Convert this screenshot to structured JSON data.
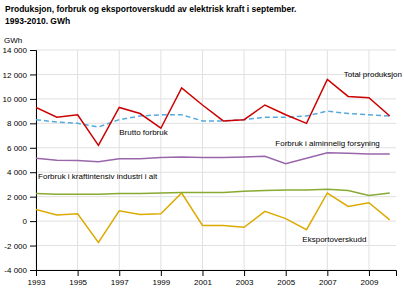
{
  "chart_data": {
    "type": "line",
    "title": "Produksjon, forbruk og eksportoverskudd av elektrisk kraft i september.",
    "subtitle": "1993-2010. GWh",
    "ylabel": "GWh",
    "x": [
      1993,
      1994,
      1995,
      1996,
      1997,
      1998,
      1999,
      2000,
      2001,
      2002,
      2003,
      2004,
      2005,
      2006,
      2007,
      2008,
      2009,
      2010
    ],
    "series": [
      {
        "color": "#cc0000",
        "line_style": "solid",
        "values": [
          9300,
          8500,
          8700,
          6200,
          9300,
          8800,
          7600,
          10900,
          9500,
          8200,
          8300,
          9500,
          8700,
          8000,
          11600,
          10200,
          10100,
          8600
        ]
      },
      {
        "color": "#55aadd",
        "line_style": "dashed",
        "values": [
          8300,
          8100,
          8000,
          7700,
          8300,
          8600,
          8700,
          8700,
          8200,
          8200,
          8300,
          8500,
          8500,
          8600,
          9000,
          8800,
          8700,
          8600
        ]
      },
      {
        "color": "#9966aa",
        "line_style": "solid",
        "values": [
          5150,
          4980,
          4950,
          4850,
          5100,
          5100,
          5200,
          5250,
          5200,
          5200,
          5250,
          5300,
          4700,
          5150,
          5600,
          5550,
          5500,
          5500
        ]
      },
      {
        "color": "#88aa33",
        "line_style": "solid",
        "values": [
          2250,
          2200,
          2200,
          2200,
          2250,
          2250,
          2300,
          2350,
          2350,
          2350,
          2450,
          2500,
          2550,
          2550,
          2600,
          2500,
          2100,
          2300
        ]
      },
      {
        "color": "#ddaa00",
        "line_style": "solid",
        "values": [
          950,
          500,
          600,
          -1750,
          850,
          550,
          600,
          2300,
          -350,
          -350,
          -500,
          800,
          200,
          -700,
          2300,
          1200,
          1500,
          100
        ]
      }
    ],
    "xlim": [
      1993,
      2010.3
    ],
    "ylim": [
      -4000,
      14000
    ],
    "xticks": [
      1993,
      1995,
      1997,
      1999,
      2001,
      2003,
      2005,
      2007,
      2009
    ],
    "yticks": [
      {
        "value": -4000,
        "label": "-4 000"
      },
      {
        "value": -2000,
        "label": "-2 000"
      },
      0,
      {
        "value": 2000,
        "label": "2 000"
      },
      {
        "value": 4000,
        "label": "4 000"
      },
      {
        "value": 6000,
        "label": "6 000"
      },
      {
        "value": 8000,
        "label": "8 000"
      },
      {
        "value": 10000,
        "label": "10 000"
      },
      {
        "value": 12000,
        "label": "12 000"
      },
      {
        "value": 14000,
        "label": "14 000"
      }
    ],
    "grid": true,
    "annotations": [
      {
        "text": "Total produksjon",
        "x": 2007.8,
        "y": 12000
      },
      {
        "text": "Brutto forbruk",
        "x": 1997.0,
        "y": 7200
      },
      {
        "text": "Forbruk i alminnelig forsyning",
        "x": 2004.5,
        "y": 6350
      },
      {
        "text": "Forbruk i kraftintensiv industri i alt",
        "x": 1993.1,
        "y": 3600
      },
      {
        "text": "Eksportoverskudd",
        "x": 2005.8,
        "y": -1500
      }
    ]
  }
}
